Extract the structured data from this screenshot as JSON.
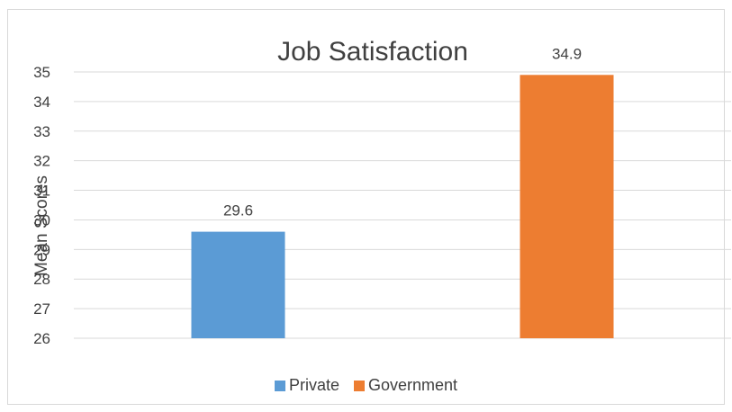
{
  "chart_data": {
    "type": "bar",
    "title": "Job Satisfaction",
    "ylabel": "Mean Scores",
    "xlabel": "",
    "categories": [
      "Private",
      "Government"
    ],
    "values": [
      29.6,
      34.9
    ],
    "data_labels": [
      "29.6",
      "34.9"
    ],
    "colors": [
      "#5b9bd5",
      "#ed7d31"
    ],
    "ylim": [
      26,
      35
    ],
    "yticks": [
      26,
      27,
      28,
      29,
      30,
      31,
      32,
      33,
      34,
      35
    ],
    "grid": true,
    "legend_position": "bottom"
  }
}
